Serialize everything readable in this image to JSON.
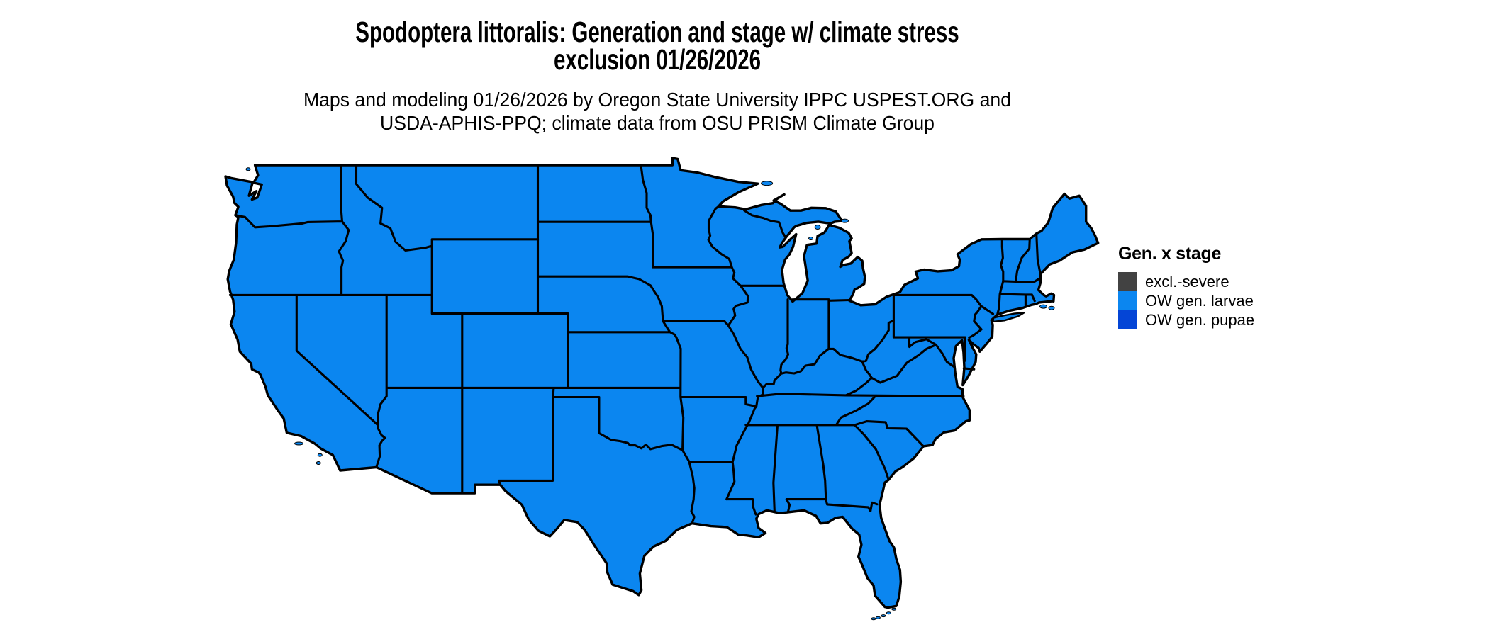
{
  "title": {
    "line1": "Spodoptera littoralis: Generation and stage w/ climate stress",
    "line2": "exclusion 01/26/2026"
  },
  "subtitle": {
    "line1": "Maps and modeling 01/26/2026 by Oregon State University IPPC USPEST.ORG and",
    "line2": "USDA-APHIS-PPQ; climate data from OSU PRISM Climate Group"
  },
  "legend": {
    "title": "Gen. x stage",
    "items": [
      {
        "label": "excl.-severe",
        "color": "#424242"
      },
      {
        "label": "OW gen. larvae",
        "color": "#0b86f0"
      },
      {
        "label": "OW gen. pupae",
        "color": "#0445d6"
      }
    ]
  },
  "map": {
    "fill_color": "#0b86f0",
    "border_color": "#000000",
    "background_color": "#ffffff"
  }
}
